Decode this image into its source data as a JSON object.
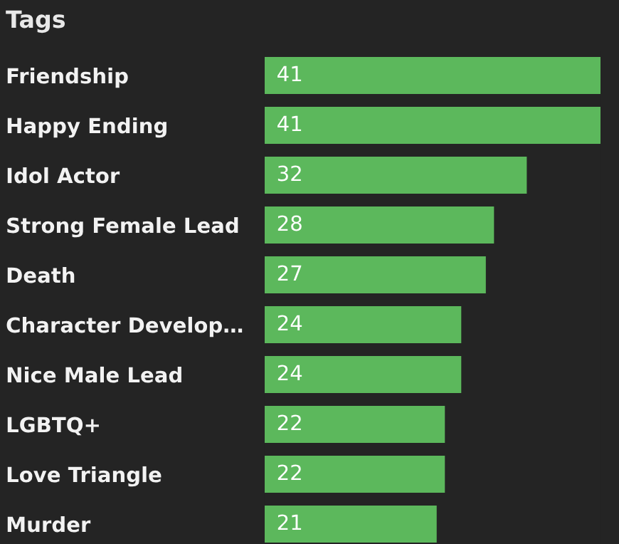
{
  "chart_data": {
    "type": "bar",
    "orientation": "horizontal",
    "title": "Tags",
    "categories": [
      "Friendship",
      "Happy Ending",
      "Idol Actor",
      "Strong Female Lead",
      "Death",
      "Character Develop…",
      "Nice Male Lead",
      "LGBTQ+",
      "Love Triangle",
      "Murder"
    ],
    "values": [
      41,
      41,
      32,
      28,
      27,
      24,
      24,
      22,
      22,
      21
    ],
    "color": "#5cb85c",
    "data_labels": true,
    "grid": false,
    "legend": false
  }
}
